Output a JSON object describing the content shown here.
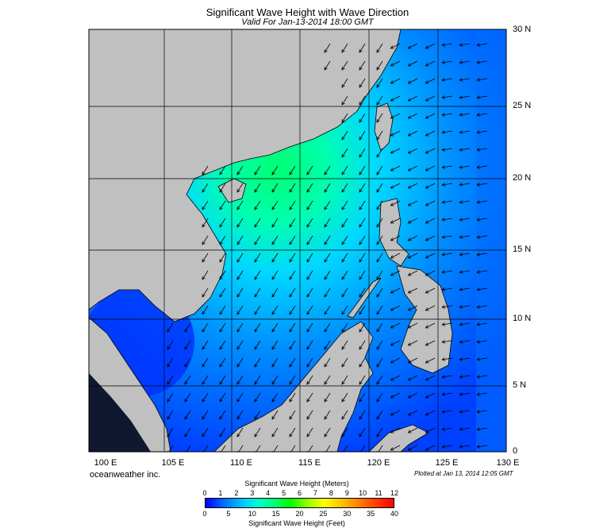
{
  "title": "Significant Wave Height with Wave Direction",
  "subtitle": "Valid For Jan-13-2014 18:00 GMT",
  "lat_labels": [
    "30 N",
    "25 N",
    "20 N",
    "15 N",
    "10 N",
    "5 N",
    "0"
  ],
  "lon_labels": [
    "100 E",
    "105 E",
    "110 E",
    "115 E",
    "120 E",
    "125 E",
    "130 E"
  ],
  "brand": "oceanweather inc.",
  "plotted": "Plotted at Jan 13, 2014 12:05 GMT",
  "colorbar": {
    "meters_title": "Significant Wave Height (Meters)",
    "feet_title": "Significant Wave Height (Feet)",
    "meters_ticks": [
      "0",
      "1",
      "2",
      "3",
      "4",
      "5",
      "6",
      "7",
      "8",
      "9",
      "10",
      "11",
      "12"
    ],
    "feet_ticks": [
      "0",
      "5",
      "10",
      "15",
      "20",
      "25",
      "30",
      "35",
      "40"
    ]
  },
  "colors": {
    "land": "#c0c0c0",
    "water_low": "#0000ff",
    "water_mid": "#00c8ff",
    "water_high": "#00ff80"
  }
}
